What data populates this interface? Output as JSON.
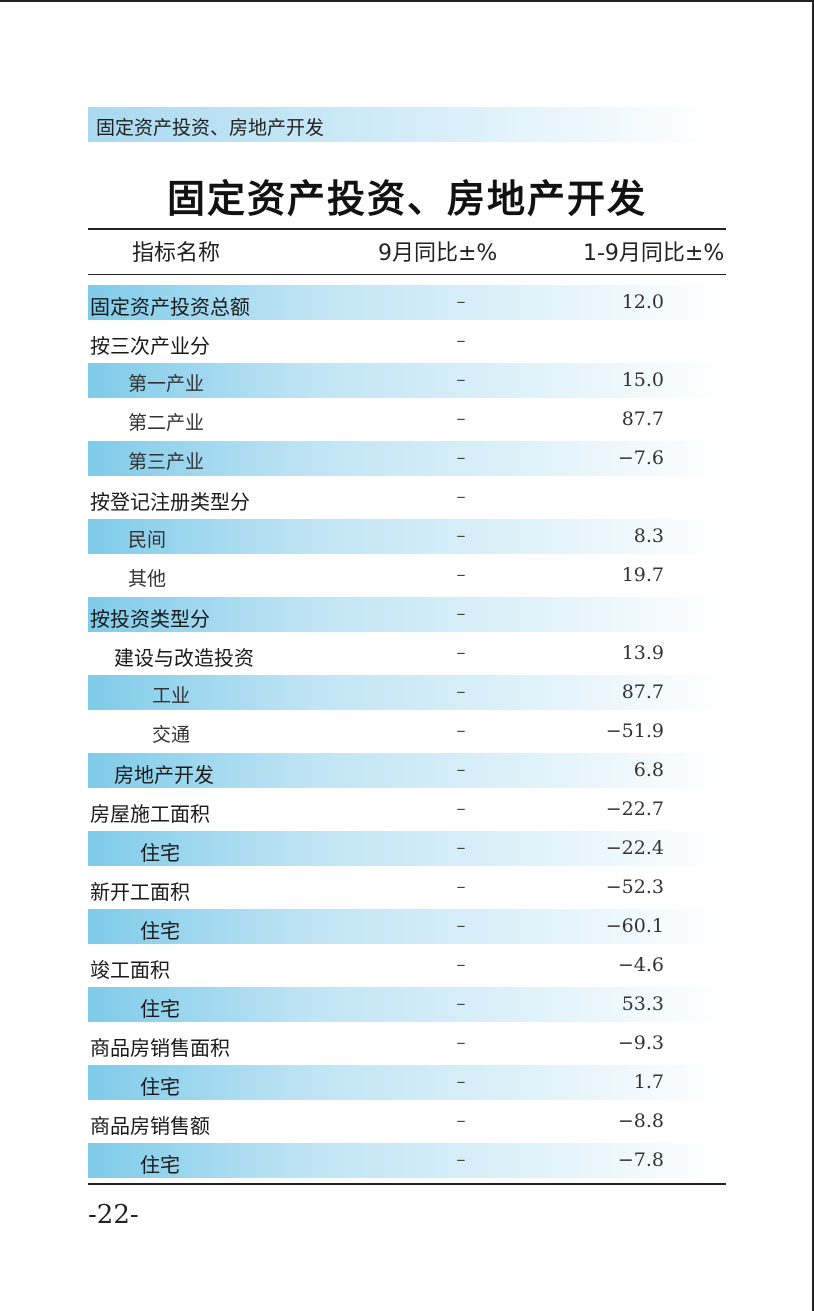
{
  "section_banner": "固定资产投资、房地产开发",
  "title": "固定资产投资、房地产开发",
  "columns": {
    "name": "指标名称",
    "sept": "9月同比±%",
    "ytd": "1-9月同比±%"
  },
  "rows": [
    {
      "name": "固定资产投资总额",
      "sept": "–",
      "ytd": "12.0"
    },
    {
      "name": "按三次产业分",
      "sept": "–",
      "ytd": ""
    },
    {
      "name": "第一产业",
      "sept": "–",
      "ytd": "15.0"
    },
    {
      "name": "第二产业",
      "sept": "–",
      "ytd": "87.7"
    },
    {
      "name": "第三产业",
      "sept": "–",
      "ytd": "−7.6"
    },
    {
      "name": "按登记注册类型分",
      "sept": "–",
      "ytd": ""
    },
    {
      "name": "民间",
      "sept": "–",
      "ytd": "8.3"
    },
    {
      "name": "其他",
      "sept": "–",
      "ytd": "19.7"
    },
    {
      "name": "按投资类型分",
      "sept": "–",
      "ytd": ""
    },
    {
      "name": "建设与改造投资",
      "sept": "–",
      "ytd": "13.9"
    },
    {
      "name": "工业",
      "sept": "–",
      "ytd": "87.7"
    },
    {
      "name": "交通",
      "sept": "–",
      "ytd": "−51.9"
    },
    {
      "name": "房地产开发",
      "sept": "–",
      "ytd": "6.8"
    },
    {
      "name": "房屋施工面积",
      "sept": "–",
      "ytd": "−22.7"
    },
    {
      "name": "住宅",
      "sept": "–",
      "ytd": "−22.4"
    },
    {
      "name": "新开工面积",
      "sept": "–",
      "ytd": "−52.3"
    },
    {
      "name": "住宅",
      "sept": "–",
      "ytd": "−60.1"
    },
    {
      "name": "竣工面积",
      "sept": "–",
      "ytd": "−4.6"
    },
    {
      "name": "住宅",
      "sept": "–",
      "ytd": "53.3"
    },
    {
      "name": "商品房销售面积",
      "sept": "–",
      "ytd": "−9.3"
    },
    {
      "name": "住宅",
      "sept": "–",
      "ytd": "1.7"
    },
    {
      "name": "商品房销售额",
      "sept": "–",
      "ytd": "−8.8"
    },
    {
      "name": "住宅",
      "sept": "–",
      "ytd": "−7.8"
    }
  ],
  "page_number": "-22-"
}
